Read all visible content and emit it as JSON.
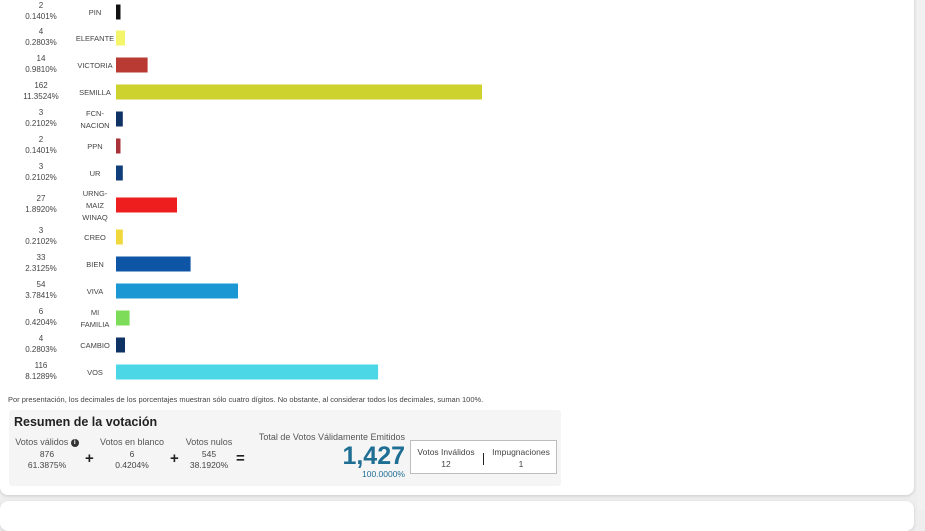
{
  "chart_data": {
    "type": "bar",
    "orientation": "horizontal",
    "categories": [
      "PIN",
      "ELEFANTE",
      "VICTORIA",
      "SEMILLA",
      "FCN-NACION",
      "PPN",
      "UR",
      "URNG-MAIZ WINAQ",
      "CREO",
      "BIEN",
      "VIVA",
      "MI FAMILIA",
      "CAMBIO",
      "VOS"
    ],
    "category_lines": [
      [
        "PIN"
      ],
      [
        "ELEFANTE"
      ],
      [
        "VICTORIA"
      ],
      [
        "SEMILLA"
      ],
      [
        "FCN-",
        "NACION"
      ],
      [
        "PPN"
      ],
      [
        "UR"
      ],
      [
        "URNG-",
        "MAIZ",
        "WINAQ"
      ],
      [
        "CREO"
      ],
      [
        "BIEN"
      ],
      [
        "VIVA"
      ],
      [
        "MI",
        "FAMILIA"
      ],
      [
        "CAMBIO"
      ],
      [
        "VOS"
      ]
    ],
    "values": [
      2,
      4,
      14,
      162,
      3,
      2,
      3,
      27,
      3,
      33,
      54,
      6,
      4,
      116
    ],
    "percentages": [
      "0.1401%",
      "0.2803%",
      "0.9810%",
      "11.3524%",
      "0.2102%",
      "0.1401%",
      "0.2102%",
      "1.8920%",
      "0.2102%",
      "2.3125%",
      "3.7841%",
      "0.4204%",
      "0.2803%",
      "8.1289%"
    ],
    "colors": [
      "#111111",
      "#f5f56b",
      "#b93a32",
      "#cdd22e",
      "#0f3264",
      "#a83237",
      "#103e7a",
      "#ee1e1e",
      "#f0d83c",
      "#0e55a5",
      "#1b98d4",
      "#7ddc5a",
      "#0f3264",
      "#4bd7e6"
    ],
    "title": "",
    "xlabel": "",
    "ylabel": "",
    "xlim": [
      0,
      162
    ],
    "grid": false,
    "legend": "none"
  },
  "footnote": "Por presentación, los decimales de los porcentajes muestran sólo cuatro dígitos. No obstante, al considerar todos los decimales, suman 100%.",
  "summary": {
    "title": "Resumen de la votación",
    "valid": {
      "label": "Votos válidos",
      "value": "876",
      "pct": "61.3875%"
    },
    "blank": {
      "label": "Votos en blanco",
      "value": "6",
      "pct": "0.4204%"
    },
    "null": {
      "label": "Votos nulos",
      "value": "545",
      "pct": "38.1920%"
    },
    "plus1": "+",
    "plus2": "+",
    "equals": "=",
    "total": {
      "label": "Total de Votos Válidamente Emitidos",
      "value": "1,427",
      "pct": "100.0000%"
    },
    "invalid": {
      "label": "Votos Inválidos",
      "value": "12"
    },
    "challenges": {
      "label": "Impugnaciones",
      "value": "1"
    },
    "info_icon": "info-icon"
  }
}
